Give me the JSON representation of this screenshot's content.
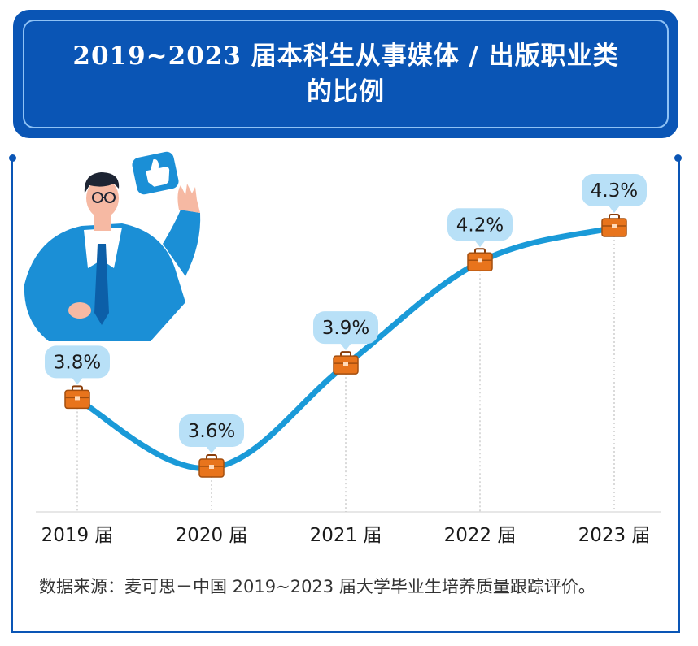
{
  "header": {
    "title_line1": "2019~2023 届本科生从事媒体 / 出版职业类",
    "title_line2": "的比例"
  },
  "source_text": "数据来源：麦可思－中国 2019~2023 届大学毕业生培养质量跟踪评价。",
  "colors": {
    "primary_blue": "#0a55b5",
    "line_blue": "#1a9ad8",
    "label_bubble": "#b8e0f7",
    "briefcase": "#e8741c"
  },
  "icons": [
    "person-illustration",
    "thumbs-up-icon",
    "briefcase-icon"
  ],
  "chart_data": {
    "type": "line",
    "title": "2019~2023 届本科生从事媒体 / 出版职业类的比例",
    "categories": [
      "2019 届",
      "2020 届",
      "2021 届",
      "2022 届",
      "2023 届"
    ],
    "values": [
      3.8,
      3.6,
      3.9,
      4.2,
      4.3
    ],
    "value_labels": [
      "3.8%",
      "3.6%",
      "3.9%",
      "4.2%",
      "4.3%"
    ],
    "unit": "%",
    "grid": false,
    "legend": "none"
  }
}
